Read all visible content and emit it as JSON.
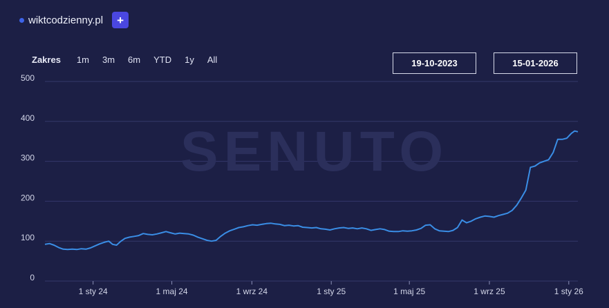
{
  "legend": {
    "label": "wiktcodzienny.pl",
    "add_label": "+"
  },
  "range": {
    "label": "Zakres",
    "buttons": [
      "1m",
      "3m",
      "6m",
      "YTD",
      "1y",
      "All"
    ]
  },
  "dates": {
    "start": "19-10-2023",
    "end": "15-01-2026"
  },
  "watermark": "SENUTO",
  "colors": {
    "background": "#1c1f45",
    "line": "#3a8ee6",
    "accent": "#4a47e0"
  },
  "chart_data": {
    "type": "line",
    "title": "",
    "xlabel": "",
    "ylabel": "",
    "ylim": [
      0,
      500
    ],
    "yticks": [
      0,
      100,
      200,
      300,
      400,
      500
    ],
    "xlim": [
      "2023-10-19",
      "2026-01-15"
    ],
    "xticks": [
      {
        "date": "2024-01-01",
        "label": "1 sty 24"
      },
      {
        "date": "2024-05-01",
        "label": "1 maj 24"
      },
      {
        "date": "2024-09-01",
        "label": "1 wrz 24"
      },
      {
        "date": "2025-01-01",
        "label": "1 sty 25"
      },
      {
        "date": "2025-05-01",
        "label": "1 maj 25"
      },
      {
        "date": "2025-09-01",
        "label": "1 wrz 25"
      },
      {
        "date": "2026-01-01",
        "label": "1 sty 26"
      }
    ],
    "grid": true,
    "series": [
      {
        "name": "wiktcodzienny.pl",
        "points": [
          [
            "2023-10-19",
            92
          ],
          [
            "2023-10-26",
            94
          ],
          [
            "2023-11-02",
            90
          ],
          [
            "2023-11-09",
            84
          ],
          [
            "2023-11-16",
            80
          ],
          [
            "2023-11-23",
            79
          ],
          [
            "2023-11-30",
            80
          ],
          [
            "2023-12-07",
            79
          ],
          [
            "2023-12-14",
            81
          ],
          [
            "2023-12-21",
            80
          ],
          [
            "2023-12-28",
            83
          ],
          [
            "2024-01-04",
            88
          ],
          [
            "2024-01-11",
            93
          ],
          [
            "2024-01-18",
            97
          ],
          [
            "2024-01-25",
            100
          ],
          [
            "2024-01-31",
            92
          ],
          [
            "2024-02-06",
            90
          ],
          [
            "2024-02-12",
            99
          ],
          [
            "2024-02-19",
            107
          ],
          [
            "2024-02-26",
            110
          ],
          [
            "2024-03-04",
            112
          ],
          [
            "2024-03-11",
            114
          ],
          [
            "2024-03-18",
            119
          ],
          [
            "2024-03-25",
            117
          ],
          [
            "2024-04-01",
            116
          ],
          [
            "2024-04-08",
            118
          ],
          [
            "2024-04-15",
            121
          ],
          [
            "2024-04-22",
            124
          ],
          [
            "2024-04-29",
            121
          ],
          [
            "2024-05-06",
            118
          ],
          [
            "2024-05-13",
            120
          ],
          [
            "2024-05-20",
            119
          ],
          [
            "2024-05-27",
            118
          ],
          [
            "2024-06-03",
            115
          ],
          [
            "2024-06-10",
            110
          ],
          [
            "2024-06-17",
            106
          ],
          [
            "2024-06-24",
            102
          ],
          [
            "2024-07-01",
            100
          ],
          [
            "2024-07-08",
            102
          ],
          [
            "2024-07-15",
            112
          ],
          [
            "2024-07-22",
            120
          ],
          [
            "2024-07-29",
            126
          ],
          [
            "2024-08-05",
            130
          ],
          [
            "2024-08-12",
            134
          ],
          [
            "2024-08-19",
            136
          ],
          [
            "2024-08-26",
            139
          ],
          [
            "2024-09-02",
            141
          ],
          [
            "2024-09-09",
            140
          ],
          [
            "2024-09-16",
            142
          ],
          [
            "2024-09-23",
            144
          ],
          [
            "2024-09-30",
            145
          ],
          [
            "2024-10-07",
            143
          ],
          [
            "2024-10-14",
            142
          ],
          [
            "2024-10-21",
            139
          ],
          [
            "2024-10-28",
            140
          ],
          [
            "2024-11-04",
            138
          ],
          [
            "2024-11-11",
            139
          ],
          [
            "2024-11-18",
            135
          ],
          [
            "2024-11-25",
            134
          ],
          [
            "2024-12-02",
            133
          ],
          [
            "2024-12-09",
            134
          ],
          [
            "2024-12-16",
            131
          ],
          [
            "2024-12-23",
            130
          ],
          [
            "2024-12-30",
            128
          ],
          [
            "2025-01-06",
            131
          ],
          [
            "2025-01-13",
            133
          ],
          [
            "2025-01-20",
            134
          ],
          [
            "2025-01-27",
            132
          ],
          [
            "2025-02-03",
            133
          ],
          [
            "2025-02-10",
            131
          ],
          [
            "2025-02-17",
            133
          ],
          [
            "2025-02-24",
            131
          ],
          [
            "2025-03-03",
            127
          ],
          [
            "2025-03-10",
            129
          ],
          [
            "2025-03-17",
            131
          ],
          [
            "2025-03-24",
            129
          ],
          [
            "2025-03-31",
            125
          ],
          [
            "2025-04-07",
            124
          ],
          [
            "2025-04-14",
            124
          ],
          [
            "2025-04-21",
            126
          ],
          [
            "2025-04-28",
            125
          ],
          [
            "2025-05-05",
            126
          ],
          [
            "2025-05-12",
            128
          ],
          [
            "2025-05-19",
            132
          ],
          [
            "2025-05-26",
            140
          ],
          [
            "2025-06-02",
            141
          ],
          [
            "2025-06-09",
            131
          ],
          [
            "2025-06-16",
            126
          ],
          [
            "2025-06-23",
            125
          ],
          [
            "2025-06-30",
            124
          ],
          [
            "2025-07-07",
            127
          ],
          [
            "2025-07-14",
            134
          ],
          [
            "2025-07-21",
            153
          ],
          [
            "2025-07-28",
            146
          ],
          [
            "2025-08-04",
            150
          ],
          [
            "2025-08-11",
            156
          ],
          [
            "2025-08-18",
            160
          ],
          [
            "2025-08-25",
            163
          ],
          [
            "2025-09-01",
            162
          ],
          [
            "2025-09-08",
            160
          ],
          [
            "2025-09-15",
            164
          ],
          [
            "2025-09-22",
            167
          ],
          [
            "2025-09-29",
            170
          ],
          [
            "2025-10-06",
            177
          ],
          [
            "2025-10-13",
            190
          ],
          [
            "2025-10-20",
            208
          ],
          [
            "2025-10-27",
            228
          ],
          [
            "2025-11-03",
            285
          ],
          [
            "2025-11-10",
            288
          ],
          [
            "2025-11-17",
            296
          ],
          [
            "2025-11-24",
            300
          ],
          [
            "2025-12-01",
            304
          ],
          [
            "2025-12-08",
            322
          ],
          [
            "2025-12-15",
            355
          ],
          [
            "2025-12-22",
            355
          ],
          [
            "2025-12-29",
            358
          ],
          [
            "2026-01-05",
            370
          ],
          [
            "2026-01-10",
            376
          ],
          [
            "2026-01-15",
            374
          ]
        ]
      }
    ]
  }
}
